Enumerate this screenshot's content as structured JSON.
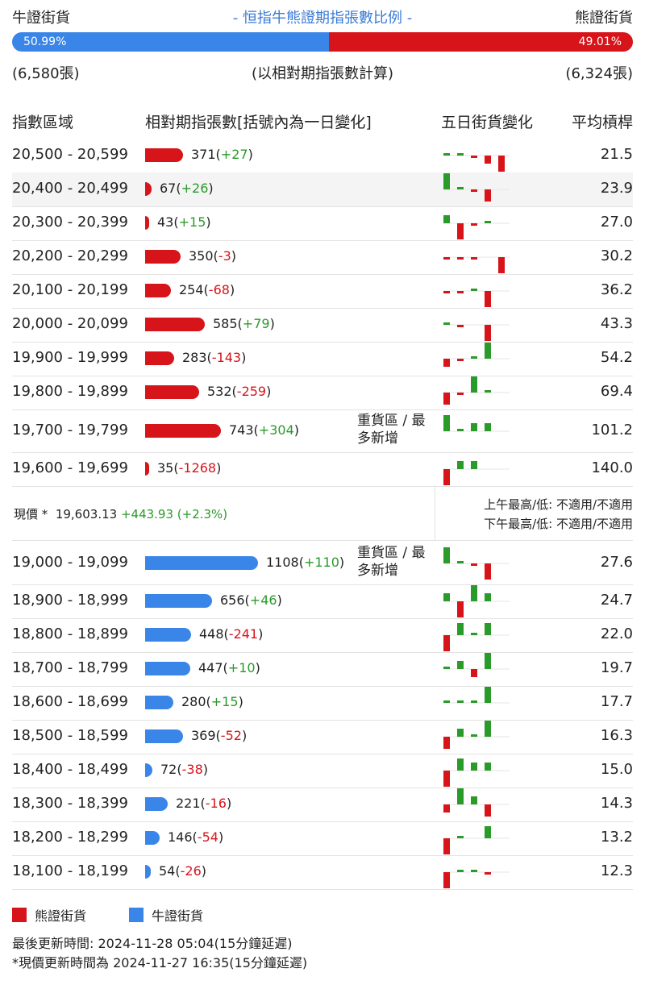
{
  "header": {
    "bull_label": "牛證街貨",
    "title": "- 恒指牛熊證期指張數比例 -",
    "bear_label": "熊證街貨"
  },
  "ratio": {
    "bull_pct": "50.99%",
    "bear_pct": "49.01%",
    "bull_value": 50.99
  },
  "counts": {
    "bull": "(6,580張)",
    "note": "(以相對期指張數計算)",
    "bear": "(6,324張)"
  },
  "columns": {
    "range": "指數區域",
    "contracts": "相對期指張數[括號內為一日變化]",
    "five_day": "五日街貨變化",
    "avg": "平均槓桿"
  },
  "colors": {
    "bear": "#d7141a",
    "bull": "#3a86e8",
    "up": "#2a9a2a",
    "down": "#d7141a"
  },
  "bear_rows": [
    {
      "range": "20,500 - 20,599",
      "contracts": "371",
      "change": "+27",
      "avg": "21.5",
      "five": [
        1,
        1,
        -1,
        -2,
        -4
      ],
      "note": ""
    },
    {
      "range": "20,400 - 20,499",
      "contracts": "67",
      "change": "+26",
      "avg": "23.9",
      "five": [
        4,
        1,
        -1,
        -3,
        0
      ],
      "note": ""
    },
    {
      "range": "20,300 - 20,399",
      "contracts": "43",
      "change": "+15",
      "avg": "27.0",
      "five": [
        2,
        -4,
        -1,
        1,
        0
      ],
      "note": ""
    },
    {
      "range": "20,200 - 20,299",
      "contracts": "350",
      "change": "-3",
      "avg": "30.2",
      "five": [
        -1,
        -1,
        -1,
        0,
        -4
      ],
      "note": ""
    },
    {
      "range": "20,100 - 20,199",
      "contracts": "254",
      "change": "-68",
      "avg": "36.2",
      "five": [
        -1,
        -1,
        1,
        -4,
        0
      ],
      "note": ""
    },
    {
      "range": "20,000 - 20,099",
      "contracts": "585",
      "change": "+79",
      "avg": "43.3",
      "five": [
        1,
        -1,
        0,
        -4,
        0
      ],
      "note": ""
    },
    {
      "range": "19,900 - 19,999",
      "contracts": "283",
      "change": "-143",
      "avg": "54.2",
      "five": [
        -2,
        -1,
        1,
        4,
        0
      ],
      "note": ""
    },
    {
      "range": "19,800 - 19,899",
      "contracts": "532",
      "change": "-259",
      "avg": "69.4",
      "five": [
        -3,
        -1,
        4,
        1,
        0
      ],
      "note": ""
    },
    {
      "range": "19,700 - 19,799",
      "contracts": "743",
      "change": "+304",
      "avg": "101.2",
      "five": [
        4,
        1,
        2,
        2,
        0
      ],
      "note": "重貨區 / 最多新增"
    },
    {
      "range": "19,600 - 19,699",
      "contracts": "35",
      "change": "-1268",
      "avg": "140.0",
      "five": [
        -4,
        2,
        2,
        0,
        0
      ],
      "note": ""
    }
  ],
  "spot": {
    "label": "現價 *",
    "price": "19,603.13",
    "change": "+443.93 (+2.3%)",
    "am": "上午最高/低: 不適用/不適用",
    "pm": "下午最高/低: 不適用/不適用"
  },
  "bull_rows": [
    {
      "range": "19,000 - 19,099",
      "contracts": "1108",
      "change": "+110",
      "avg": "27.6",
      "five": [
        4,
        1,
        -1,
        -4,
        0
      ],
      "note": "重貨區 / 最多新增"
    },
    {
      "range": "18,900 - 18,999",
      "contracts": "656",
      "change": "+46",
      "avg": "24.7",
      "five": [
        2,
        -4,
        4,
        2,
        0
      ],
      "note": ""
    },
    {
      "range": "18,800 - 18,899",
      "contracts": "448",
      "change": "-241",
      "avg": "22.0",
      "five": [
        -4,
        3,
        1,
        3,
        0
      ],
      "note": ""
    },
    {
      "range": "18,700 - 18,799",
      "contracts": "447",
      "change": "+10",
      "avg": "19.7",
      "five": [
        1,
        2,
        -2,
        4,
        0
      ],
      "note": ""
    },
    {
      "range": "18,600 - 18,699",
      "contracts": "280",
      "change": "+15",
      "avg": "17.7",
      "five": [
        1,
        1,
        1,
        4,
        0
      ],
      "note": ""
    },
    {
      "range": "18,500 - 18,599",
      "contracts": "369",
      "change": "-52",
      "avg": "16.3",
      "five": [
        -3,
        2,
        1,
        4,
        0
      ],
      "note": ""
    },
    {
      "range": "18,400 - 18,499",
      "contracts": "72",
      "change": "-38",
      "avg": "15.0",
      "five": [
        -4,
        3,
        2,
        2,
        0
      ],
      "note": ""
    },
    {
      "range": "18,300 - 18,399",
      "contracts": "221",
      "change": "-16",
      "avg": "14.3",
      "five": [
        -2,
        4,
        2,
        -3,
        0
      ],
      "note": ""
    },
    {
      "range": "18,200 - 18,299",
      "contracts": "146",
      "change": "-54",
      "avg": "13.2",
      "five": [
        -4,
        1,
        0,
        3,
        0
      ],
      "note": ""
    },
    {
      "range": "18,100 - 18,199",
      "contracts": "54",
      "change": "-26",
      "avg": "12.3",
      "five": [
        -4,
        1,
        1,
        -1,
        0
      ],
      "note": ""
    }
  ],
  "legend": {
    "bear": "熊證街貨",
    "bull": "牛證街貨"
  },
  "footer": {
    "updated": "最後更新時間: 2024-11-28 05:04(15分鐘延遲)",
    "spot_updated": "*現價更新時間為 2024-11-27 16:35(15分鐘延遲)"
  }
}
